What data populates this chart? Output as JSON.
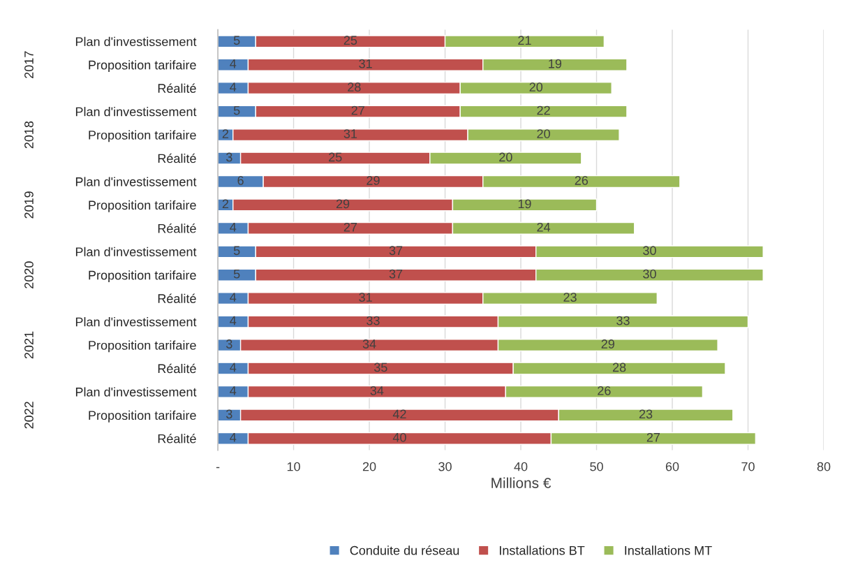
{
  "chart_data": {
    "type": "bar",
    "orientation": "horizontal",
    "stacked": true,
    "categories": [
      "Plan d'investissement",
      "Proposition tarifaire",
      "Réalité",
      "Plan d'investissement",
      "Proposition tarifaire",
      "Réalité",
      "Plan d'investissement",
      "Proposition tarifaire",
      "Réalité",
      "Plan d'investissement",
      "Proposition tarifaire",
      "Réalité",
      "Plan d'investissement",
      "Proposition tarifaire",
      "Réalité",
      "Plan d'investissement",
      "Proposition tarifaire",
      "Réalité"
    ],
    "series": [
      {
        "name": "Conduite du réseau",
        "color": "#4f81bd",
        "values": [
          5,
          4,
          4,
          5,
          2,
          3,
          6,
          2,
          4,
          5,
          5,
          4,
          4,
          3,
          4,
          4,
          3,
          4
        ]
      },
      {
        "name": "Installations BT",
        "color": "#c0504d",
        "values": [
          25,
          31,
          28,
          27,
          31,
          25,
          29,
          29,
          27,
          37,
          37,
          31,
          33,
          34,
          35,
          34,
          42,
          40
        ]
      },
      {
        "name": "Installations MT",
        "color": "#9bbb59",
        "values": [
          21,
          19,
          20,
          22,
          20,
          20,
          26,
          19,
          24,
          30,
          30,
          23,
          33,
          29,
          28,
          26,
          23,
          27
        ]
      }
    ],
    "annotations": [
      "2017",
      "2018",
      "2019",
      "2020",
      "2021",
      "2022"
    ],
    "xlabel": "Millions €",
    "xlim": [
      0,
      80
    ],
    "xticks": [
      {
        "value": 0,
        "label": "-"
      },
      10,
      20,
      30,
      40,
      50,
      60,
      70,
      80
    ],
    "grid": "x",
    "legend": "bottom",
    "data_labels": true
  }
}
